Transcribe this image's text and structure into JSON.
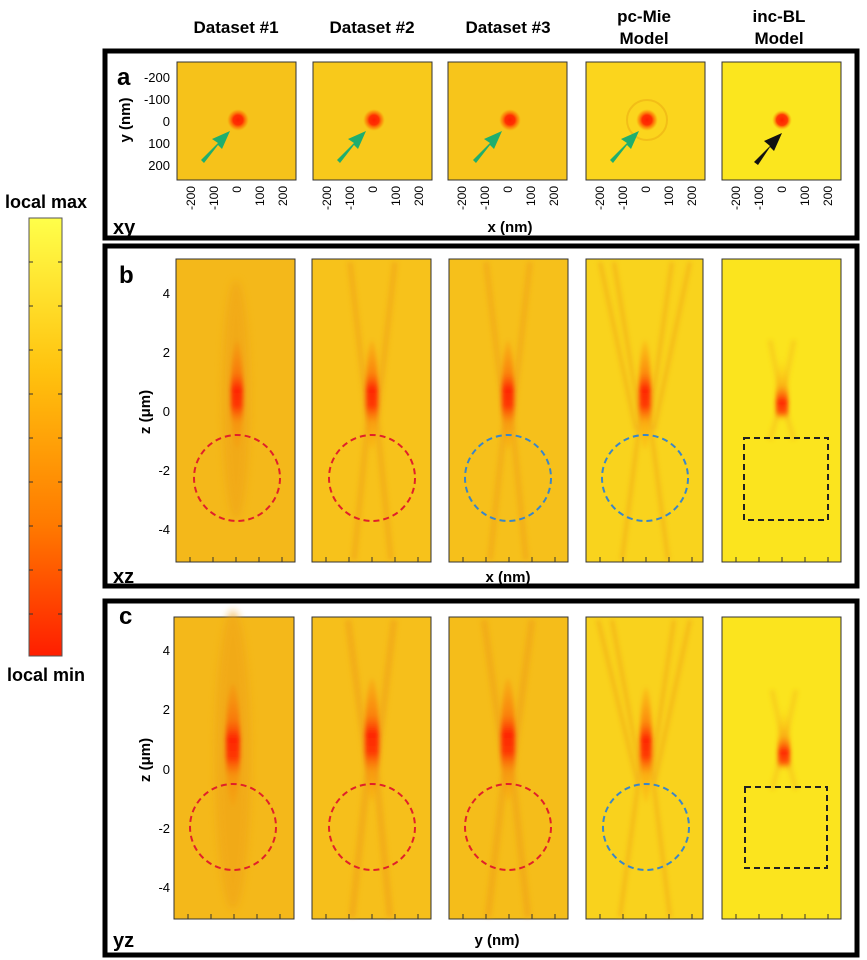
{
  "columns": [
    {
      "line1": "Dataset #1",
      "line2": ""
    },
    {
      "line1": "Dataset #2",
      "line2": ""
    },
    {
      "line1": "Dataset #3",
      "line2": ""
    },
    {
      "line1": "pc-Mie",
      "line2": "Model"
    },
    {
      "line1": "inc-BL",
      "line2": "Model"
    }
  ],
  "colorbar": {
    "top_label": "local max",
    "bottom_label": "local min"
  },
  "panels": [
    {
      "letter": "a",
      "plane": "xy",
      "xlabel": "x (nm)",
      "ylabel": "y (nm)",
      "xticks": [
        "-200",
        "-100",
        "0",
        "100",
        "200"
      ],
      "yticks": [
        "-200",
        "-100",
        "0",
        "100",
        "200"
      ],
      "markers": [
        "green-arrow",
        "green-arrow",
        "green-arrow",
        "green-arrow",
        "black-arrow"
      ]
    },
    {
      "letter": "b",
      "plane": "xz",
      "xlabel": "x (nm)",
      "ylabel_main": "z (",
      "ylabel_unit": "μm",
      "ylabel_end": ")",
      "yticks": [
        "4",
        "2",
        "0",
        "-2",
        "-4"
      ],
      "markers": [
        "red-circle",
        "red-circle",
        "blue-circle",
        "blue-circle",
        "dashed-box"
      ]
    },
    {
      "letter": "c",
      "plane": "yz",
      "xlabel": "y (nm)",
      "ylabel_main": "z (",
      "ylabel_unit": "μm",
      "ylabel_end": ")",
      "yticks": [
        "4",
        "2",
        "0",
        "-2",
        "-4"
      ],
      "markers": [
        "red-circle",
        "red-circle",
        "red-circle",
        "blue-circle",
        "dashed-box"
      ]
    }
  ],
  "colors": {
    "background_field": "#f6c21a",
    "model_field": "#fbe41e",
    "minimum": "#ff1e00",
    "red_circle": "#e0202a",
    "blue_circle": "#3a86c8",
    "green_arrow": "#1fae6e",
    "frame": "#000000"
  }
}
